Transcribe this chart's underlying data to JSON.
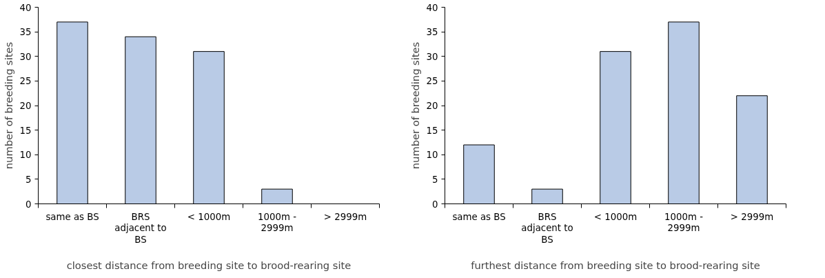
{
  "chart_data": [
    {
      "type": "bar",
      "xlabel": "closest distance from breeding site to brood-rearing site",
      "ylabel": "number of breeding sites",
      "categories": [
        "same as BS",
        "BRS adjacent to BS",
        "< 1000m",
        "1000m - 2999m",
        "> 2999m"
      ],
      "values": [
        37,
        34,
        31,
        3,
        0
      ],
      "color": "#b9cbe6",
      "ylim": [
        0,
        40
      ],
      "yticks": [
        0,
        5,
        10,
        15,
        20,
        25,
        30,
        35,
        40
      ],
      "grid": false
    },
    {
      "type": "bar",
      "xlabel": "furthest distance from breeding site to brood-rearing site",
      "ylabel": "number of breeding sites",
      "categories": [
        "same as BS",
        "BRS adjacent to BS",
        "< 1000m",
        "1000m - 2999m",
        "> 2999m"
      ],
      "values": [
        12,
        3,
        31,
        37,
        22
      ],
      "color": "#b9cbe6",
      "ylim": [
        0,
        40
      ],
      "yticks": [
        0,
        5,
        10,
        15,
        20,
        25,
        30,
        35,
        40
      ],
      "grid": false
    }
  ]
}
